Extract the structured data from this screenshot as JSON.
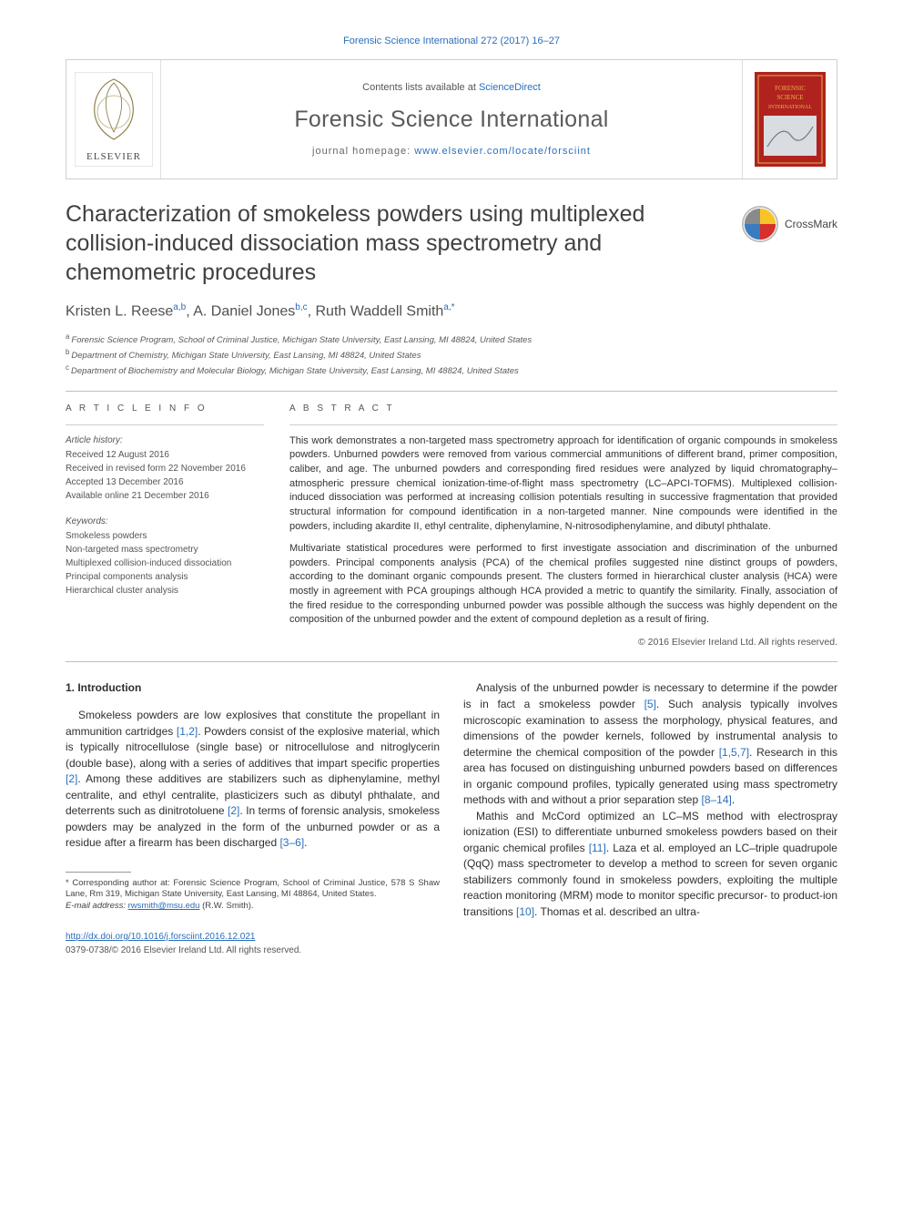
{
  "citation_line": "Forensic Science International 272 (2017) 16–27",
  "masthead": {
    "contents_prefix": "Contents lists available at ",
    "contents_link": "ScienceDirect",
    "journal_name": "Forensic Science International",
    "homepage_prefix": "journal homepage: ",
    "homepage_url": "www.elsevier.com/locate/forsciint",
    "logo_color": "#f47920",
    "logo_text": "ELSEVIER",
    "cover_bg": "#b0221e",
    "cover_brand": "FORENSIC SCIENCE INTERNATIONAL"
  },
  "title": "Characterization of smokeless powders using multiplexed collision-induced dissociation mass spectrometry and chemometric procedures",
  "crossmark_label": "CrossMark",
  "authors_html": "Kristen L. Reese<sup>a,b</sup>, A. Daniel Jones<sup>b,c</sup>, Ruth Waddell Smith<sup>a,*</sup>",
  "affiliations": {
    "a": "Forensic Science Program, School of Criminal Justice, Michigan State University, East Lansing, MI 48824, United States",
    "b": "Department of Chemistry, Michigan State University, East Lansing, MI 48824, United States",
    "c": "Department of Biochemistry and Molecular Biology, Michigan State University, East Lansing, MI 48824, United States"
  },
  "article_info": {
    "heading": "A R T I C L E  I N F O",
    "history_label": "Article history:",
    "received": "Received 12 August 2016",
    "revised": "Received in revised form 22 November 2016",
    "accepted": "Accepted 13 December 2016",
    "online": "Available online 21 December 2016",
    "keywords_label": "Keywords:",
    "keywords": [
      "Smokeless powders",
      "Non-targeted mass spectrometry",
      "Multiplexed collision-induced dissociation",
      "Principal components analysis",
      "Hierarchical cluster analysis"
    ]
  },
  "abstract": {
    "heading": "A B S T R A C T",
    "p1": "This work demonstrates a non-targeted mass spectrometry approach for identification of organic compounds in smokeless powders. Unburned powders were removed from various commercial ammunitions of different brand, primer composition, caliber, and age. The unburned powders and corresponding fired residues were analyzed by liquid chromatography–atmospheric pressure chemical ionization-time-of-flight mass spectrometry (LC–APCI-TOFMS). Multiplexed collision-induced dissociation was performed at increasing collision potentials resulting in successive fragmentation that provided structural information for compound identification in a non-targeted manner. Nine compounds were identified in the powders, including akardite II, ethyl centralite, diphenylamine, N-nitrosodiphenylamine, and dibutyl phthalate.",
    "p2": "Multivariate statistical procedures were performed to first investigate association and discrimination of the unburned powders. Principal components analysis (PCA) of the chemical profiles suggested nine distinct groups of powders, according to the dominant organic compounds present. The clusters formed in hierarchical cluster analysis (HCA) were mostly in agreement with PCA groupings although HCA provided a metric to quantify the similarity. Finally, association of the fired residue to the corresponding unburned powder was possible although the success was highly dependent on the composition of the unburned powder and the extent of compound depletion as a result of firing.",
    "copyright": "© 2016 Elsevier Ireland Ltd. All rights reserved."
  },
  "intro": {
    "heading": "1. Introduction",
    "left_p1_a": "Smokeless powders are low explosives that constitute the propellant in ammunition cartridges ",
    "left_p1_ref1": "[1,2]",
    "left_p1_b": ". Powders consist of the explosive material, which is typically nitrocellulose (single base) or nitrocellulose and nitroglycerin (double base), along with a series of additives that impart specific properties ",
    "left_p1_ref2": "[2]",
    "left_p1_c": ". Among these additives are stabilizers such as diphenylamine, methyl centralite, and ethyl centralite, plasticizers such as dibutyl phthalate, and deterrents such as dinitrotoluene ",
    "left_p1_ref3": "[2]",
    "left_p1_d": ". In terms of forensic analysis, smokeless powders may be analyzed in the form of the unburned powder or as a residue after a firearm has been discharged ",
    "left_p1_ref4": "[3–6]",
    "left_p1_e": ".",
    "right_p1_a": "Analysis of the unburned powder is necessary to determine if the powder is in fact a smokeless powder ",
    "right_p1_ref1": "[5]",
    "right_p1_b": ". Such analysis typically involves microscopic examination to assess the morphology, physical features, and dimensions of the powder kernels, followed by instrumental analysis to determine the chemical composition of the powder ",
    "right_p1_ref2": "[1,5,7]",
    "right_p1_c": ". Research in this area has focused on distinguishing unburned powders based on differences in organic compound profiles, typically generated using mass spectrometry methods with and without a prior separation step ",
    "right_p1_ref3": "[8–14]",
    "right_p1_d": ".",
    "right_p2_a": "Mathis and McCord optimized an LC–MS method with electrospray ionization (ESI) to differentiate unburned smokeless powders based on their organic chemical profiles ",
    "right_p2_ref1": "[11]",
    "right_p2_b": ". Laza et al. employed an LC–triple quadrupole (QqQ) mass spectrometer to develop a method to screen for seven organic stabilizers commonly found in smokeless powders, exploiting the multiple reaction monitoring (MRM) mode to monitor specific precursor- to product-ion transitions ",
    "right_p2_ref2": "[10]",
    "right_p2_c": ". Thomas et al. described an ultra-"
  },
  "footnote": {
    "corr": "* Corresponding author at: Forensic Science Program, School of Criminal Justice, 578 S Shaw Lane, Rm 319, Michigan State University, East Lansing, MI 48864, United States.",
    "email_label": "E-mail address: ",
    "email": "rwsmith@msu.edu",
    "email_person": " (R.W. Smith)."
  },
  "footer": {
    "doi": "http://dx.doi.org/10.1016/j.forsciint.2016.12.021",
    "issn_line": "0379-0738/© 2016 Elsevier Ireland Ltd. All rights reserved."
  },
  "colors": {
    "link": "#2a6ebb",
    "rule": "#bfbfbf",
    "text": "#333333"
  }
}
